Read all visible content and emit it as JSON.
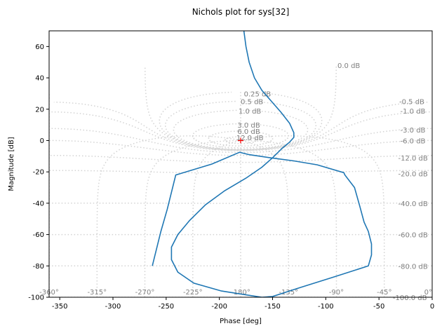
{
  "chart_data": {
    "type": "line",
    "title": "Nichols plot for sys[32]",
    "xlabel": "Phase [deg]",
    "ylabel": "Magnitude [dB]",
    "xlim": [
      -360,
      0
    ],
    "ylim": [
      -100,
      70
    ],
    "x_ticks": [
      -350,
      -300,
      -250,
      -200,
      -150,
      -100,
      -50,
      0
    ],
    "y_ticks": [
      -100,
      -80,
      -60,
      -40,
      -20,
      0,
      20,
      40,
      60
    ],
    "phase_grid_labels": [
      "-360°",
      "-315°",
      "-270°",
      "-225°",
      "-180°",
      "-135°",
      "-90°",
      "-45°",
      "0°"
    ],
    "closed_loop_magnitude_labels": [
      "0.0 dB",
      "0.25 dB",
      "0.5 dB",
      "1.0 dB",
      "3.0 dB",
      "6.0 dB",
      "12.0 dB",
      "-0.5 dB",
      "-1.0 dB",
      "-3.0 dB",
      "-6.0 dB",
      "-12.0 dB",
      "-20.0 dB",
      "-40.0 dB",
      "-60.0 dB",
      "-80.0 dB",
      "-100.0 dB"
    ],
    "critical_point": {
      "phase": -180,
      "magnitude": 0
    },
    "grid": "dotted gray Nichols chart grid",
    "series": [
      {
        "color": "#1f77b4",
        "points": [
          [
            -177,
            70
          ],
          [
            -175,
            60
          ],
          [
            -172,
            50
          ],
          [
            -167,
            40
          ],
          [
            -160,
            32
          ],
          [
            -151,
            25
          ],
          [
            -142,
            18
          ],
          [
            -134,
            11
          ],
          [
            -130,
            5
          ],
          [
            -130,
            2
          ],
          [
            -134,
            -1
          ],
          [
            -141,
            -5
          ],
          [
            -150,
            -11
          ],
          [
            -160,
            -17
          ],
          [
            -175,
            -24
          ],
          [
            -195,
            -32
          ],
          [
            -213,
            -41
          ],
          [
            -228,
            -51
          ],
          [
            -239,
            -60
          ],
          [
            -245,
            -68
          ],
          [
            -245,
            -76
          ],
          [
            -239,
            -84
          ],
          [
            -224,
            -91
          ],
          [
            -198,
            -96
          ],
          [
            -175,
            -98.5
          ],
          [
            -160,
            -100
          ],
          [
            -150,
            -99.5
          ],
          [
            -125,
            -94
          ],
          [
            -92,
            -87
          ],
          [
            -60,
            -80
          ],
          [
            -57,
            -73
          ],
          [
            -57,
            -66
          ],
          [
            -60,
            -58
          ],
          [
            -64,
            -52
          ],
          [
            -68,
            -42
          ],
          [
            -73,
            -30
          ],
          [
            -82,
            -22
          ],
          [
            -83,
            -20.5
          ],
          [
            -108,
            -15.5
          ],
          [
            -130,
            -13
          ],
          [
            -152,
            -11
          ],
          [
            -172,
            -9
          ],
          [
            -181,
            -7.5
          ],
          [
            -207,
            -15
          ],
          [
            -241,
            -22
          ],
          [
            -249,
            -44
          ],
          [
            -255,
            -58
          ],
          [
            -263,
            -80
          ]
        ]
      }
    ]
  }
}
